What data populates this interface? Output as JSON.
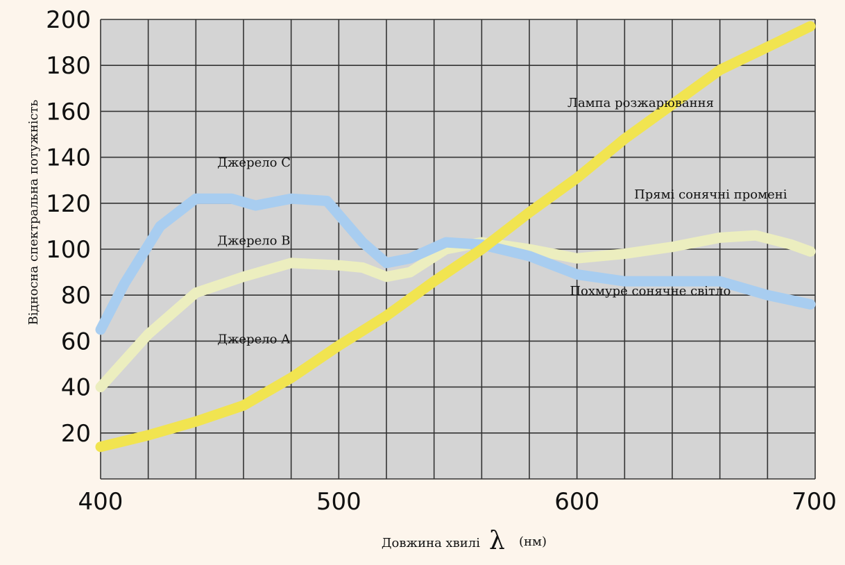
{
  "chart_data": {
    "type": "line",
    "title": "",
    "xlabel": "Довжина хвилі",
    "xlabel_symbol": "λ",
    "xlabel_unit": "(нм)",
    "ylabel": "Відносна спектральна потужність",
    "xlim": [
      400,
      700
    ],
    "ylim": [
      0,
      200
    ],
    "x_ticks": [
      400,
      500,
      600,
      700
    ],
    "y_ticks": [
      20,
      40,
      60,
      80,
      100,
      120,
      140,
      160,
      180,
      200
    ],
    "grid": true,
    "background": "#d4d4d4",
    "series": [
      {
        "name": "Джерело A",
        "color": "#f1e450",
        "points": [
          [
            400,
            14
          ],
          [
            420,
            19
          ],
          [
            440,
            25
          ],
          [
            460,
            32
          ],
          [
            480,
            44
          ],
          [
            500,
            58
          ],
          [
            520,
            71
          ],
          [
            540,
            86
          ],
          [
            560,
            100
          ],
          [
            580,
            116
          ],
          [
            600,
            131
          ],
          [
            620,
            148
          ],
          [
            640,
            163
          ],
          [
            660,
            178
          ],
          [
            680,
            188
          ],
          [
            698,
            197
          ]
        ]
      },
      {
        "name": "Джерело B",
        "color": "#eceebf",
        "points": [
          [
            400,
            40
          ],
          [
            420,
            63
          ],
          [
            440,
            81
          ],
          [
            460,
            88
          ],
          [
            480,
            94
          ],
          [
            500,
            93
          ],
          [
            510,
            92
          ],
          [
            520,
            88
          ],
          [
            530,
            90
          ],
          [
            545,
            100
          ],
          [
            560,
            103
          ],
          [
            580,
            100
          ],
          [
            600,
            96
          ],
          [
            620,
            98
          ],
          [
            640,
            101
          ],
          [
            660,
            105
          ],
          [
            675,
            106
          ],
          [
            690,
            102
          ],
          [
            698,
            99
          ]
        ]
      },
      {
        "name": "Джерело C",
        "color": "#a8cdf0",
        "points": [
          [
            400,
            65
          ],
          [
            410,
            85
          ],
          [
            425,
            110
          ],
          [
            440,
            122
          ],
          [
            455,
            122
          ],
          [
            465,
            119
          ],
          [
            480,
            122
          ],
          [
            495,
            121
          ],
          [
            510,
            103
          ],
          [
            520,
            94
          ],
          [
            530,
            96
          ],
          [
            545,
            103
          ],
          [
            560,
            102
          ],
          [
            580,
            97
          ],
          [
            600,
            89
          ],
          [
            620,
            86
          ],
          [
            640,
            86
          ],
          [
            660,
            86
          ],
          [
            680,
            80
          ],
          [
            698,
            76
          ]
        ]
      }
    ],
    "annotations": [
      {
        "id": "tungsten",
        "text": "Лампа розжарювання",
        "x": 596,
        "y": 162
      },
      {
        "id": "direct",
        "text": "Прямі сонячні промені",
        "x": 624,
        "y": 122
      },
      {
        "id": "overcast",
        "text": "Похмуре сонячне світло",
        "x": 597,
        "y": 80
      },
      {
        "id": "c",
        "text": "Джерело C",
        "x": 449,
        "y": 136
      },
      {
        "id": "b",
        "text": "Джерело B",
        "x": 449,
        "y": 102
      },
      {
        "id": "a",
        "text": "Джерело A",
        "x": 449,
        "y": 59
      }
    ]
  }
}
